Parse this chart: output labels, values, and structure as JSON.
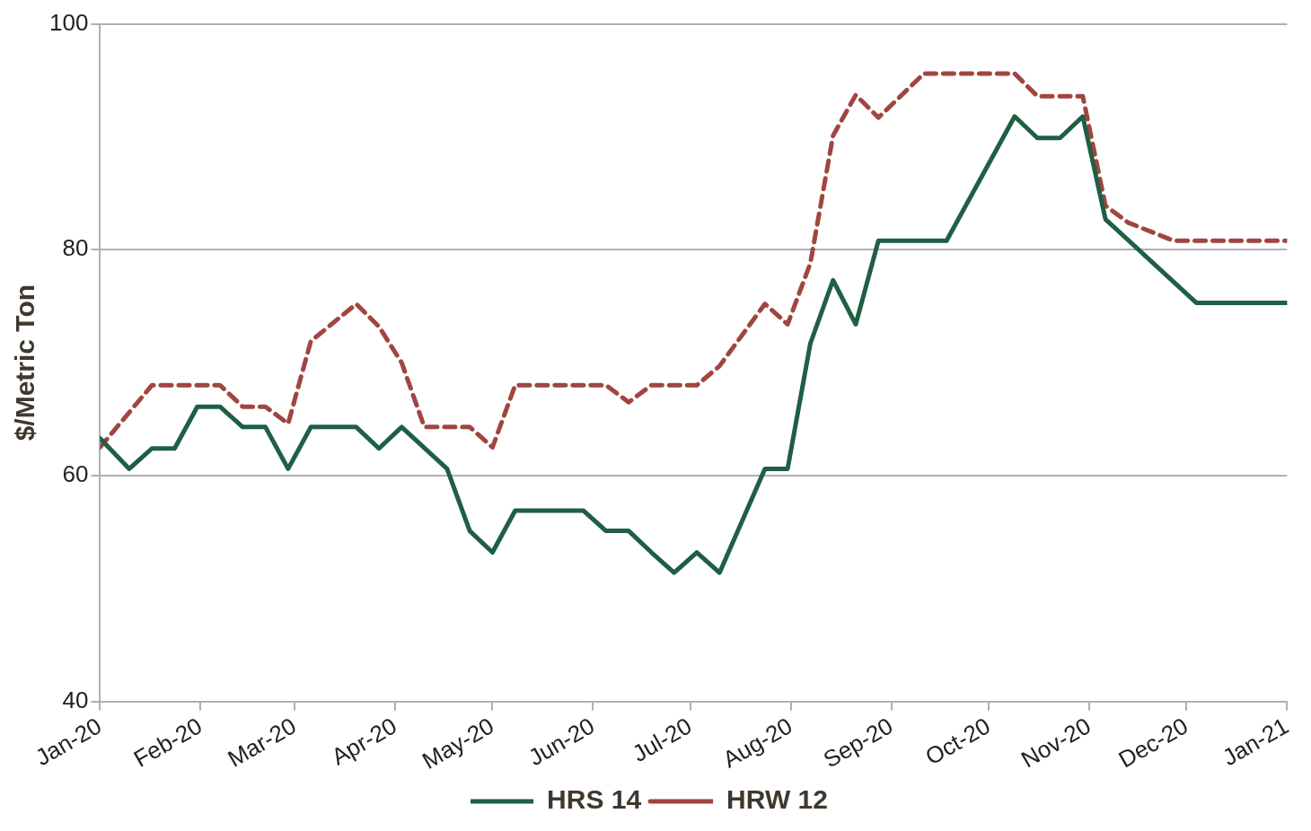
{
  "chart_data": {
    "type": "line",
    "ylabel": "$/Metric Ton",
    "xlim": [
      "2020-01",
      "2021-01"
    ],
    "xticks": [
      {
        "value": "2020-01",
        "label": "Jan-20"
      },
      {
        "value": "2020-02",
        "label": "Feb-20"
      },
      {
        "value": "2020-03",
        "label": "Mar-20"
      },
      {
        "value": "2020-04",
        "label": "Apr-20"
      },
      {
        "value": "2020-05",
        "label": "May-20"
      },
      {
        "value": "2020-06",
        "label": "Jun-20"
      },
      {
        "value": "2020-07",
        "label": "Jul-20"
      },
      {
        "value": "2020-08",
        "label": "Aug-20"
      },
      {
        "value": "2020-09",
        "label": "Sep-20"
      },
      {
        "value": "2020-10",
        "label": "Oct-20"
      },
      {
        "value": "2020-11",
        "label": "Nov-20"
      },
      {
        "value": "2020-12",
        "label": "Dec-20"
      },
      {
        "value": "2021-01",
        "label": "Jan-21"
      }
    ],
    "ylim": [
      40,
      100
    ],
    "yticks": [
      40,
      60,
      80,
      100
    ],
    "grid": "y",
    "legend": "bottom",
    "marker": "none",
    "series": [
      {
        "name": "HRS 14",
        "color": "#1f5f43",
        "line_style": "solid",
        "x": [
          "2020-01-01",
          "2020-01-10",
          "2020-01-17",
          "2020-01-24",
          "2020-01-31",
          "2020-02-07",
          "2020-02-14",
          "2020-02-21",
          "2020-02-28",
          "2020-03-06",
          "2020-03-20",
          "2020-03-27",
          "2020-04-03",
          "2020-04-17",
          "2020-04-24",
          "2020-05-01",
          "2020-05-08",
          "2020-05-29",
          "2020-06-05",
          "2020-06-12",
          "2020-06-19",
          "2020-06-26",
          "2020-07-03",
          "2020-07-10",
          "2020-07-24",
          "2020-07-31",
          "2020-08-07",
          "2020-08-14",
          "2020-08-21",
          "2020-08-28",
          "2020-09-18",
          "2020-10-09",
          "2020-10-16",
          "2020-10-23",
          "2020-10-30",
          "2020-11-06",
          "2020-12-04",
          "2021-01-01"
        ],
        "values": [
          63.3,
          60.6,
          62.4,
          62.4,
          66.1,
          66.1,
          64.3,
          64.3,
          60.6,
          64.3,
          64.3,
          62.4,
          64.3,
          60.6,
          55.1,
          53.2,
          56.9,
          56.9,
          55.1,
          55.1,
          53.2,
          51.4,
          53.2,
          51.4,
          60.6,
          60.6,
          71.7,
          77.3,
          73.4,
          80.8,
          80.8,
          91.8,
          89.9,
          89.9,
          91.8,
          82.7,
          75.3,
          75.3
        ]
      },
      {
        "name": "HRW 12",
        "color": "#a04540",
        "line_style": "dashed",
        "x": [
          "2020-01-01",
          "2020-01-17",
          "2020-02-07",
          "2020-02-14",
          "2020-02-21",
          "2020-02-28",
          "2020-03-06",
          "2020-03-20",
          "2020-03-27",
          "2020-04-03",
          "2020-04-10",
          "2020-04-24",
          "2020-05-01",
          "2020-05-08",
          "2020-06-05",
          "2020-06-12",
          "2020-06-19",
          "2020-07-03",
          "2020-07-10",
          "2020-07-24",
          "2020-07-31",
          "2020-08-07",
          "2020-08-14",
          "2020-08-21",
          "2020-08-28",
          "2020-09-11",
          "2020-10-09",
          "2020-10-16",
          "2020-10-30",
          "2020-11-06",
          "2020-11-13",
          "2020-11-27",
          "2021-01-01"
        ],
        "values": [
          62.5,
          68,
          68,
          66.1,
          66.1,
          64.6,
          71.9,
          75.2,
          73.2,
          70,
          64.3,
          64.3,
          62.5,
          68,
          68,
          66.5,
          68,
          68,
          69.7,
          75.2,
          73.4,
          78.8,
          90.1,
          93.7,
          91.7,
          95.6,
          95.6,
          93.6,
          93.6,
          83.9,
          82.4,
          80.8,
          80.8
        ]
      }
    ]
  }
}
